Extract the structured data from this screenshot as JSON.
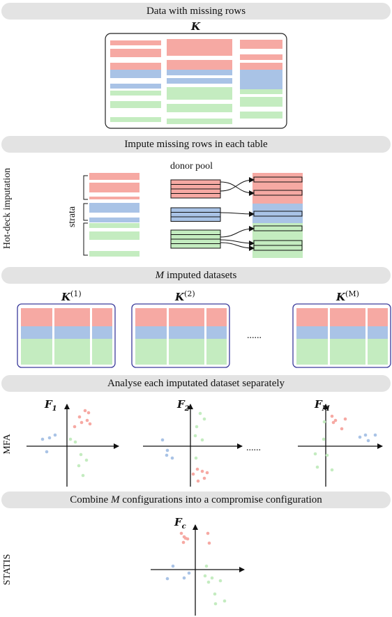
{
  "banners": {
    "step1": "Data with missing rows",
    "step2": "Impute missing rows in each table",
    "step3": "M imputed datasets",
    "step4": "Analyse each imputated dataset separately",
    "step5": "Combine M configurations into a compromise configuration"
  },
  "side_labels": {
    "hotdeck": "Hot-deck imputation",
    "mfa": "MFA",
    "statis": "STATIS"
  },
  "labels": {
    "K": "K",
    "strata": "strata",
    "donor_pool": "donor pool",
    "K1_sup": "(1)",
    "K2_sup": "(2)",
    "KM_sup": "(M)",
    "ellipsis": "......",
    "F": "F",
    "F1_sub": "1",
    "F2_sub": "2",
    "FM_sub": "M",
    "Fc_sub": "c"
  },
  "colors": {
    "red": "#f6a9a3",
    "blue": "#a9c3e6",
    "green": "#c4ecc0",
    "frame": "#222222",
    "frame_blue": "#3a3a9a",
    "banner": "#e3e3e3"
  }
}
